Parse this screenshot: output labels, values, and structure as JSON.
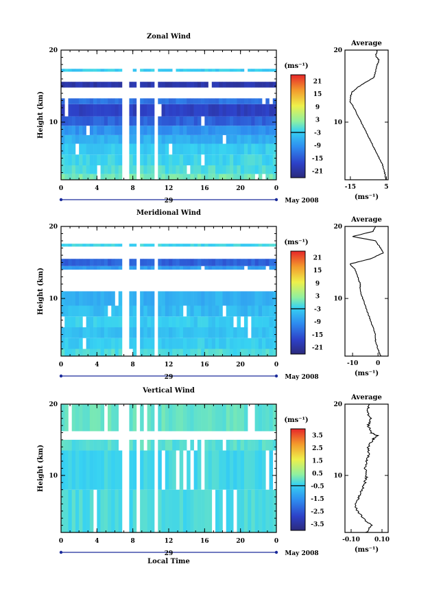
{
  "chart_data": [
    {
      "type": "heatmap",
      "title": "Zonal Wind",
      "ylabel": "Height (km)",
      "xlabel": "",
      "date_label": "29",
      "month_label": "May 2008",
      "x_ticks": [
        "0",
        "4",
        "8",
        "12",
        "16",
        "20",
        "0"
      ],
      "xlim": [
        0,
        24
      ],
      "y_ticks": [
        "10",
        "20"
      ],
      "ylim": [
        2,
        20
      ],
      "unit": "(ms⁻¹)",
      "colorbar_ticks": [
        "21",
        "15",
        "9",
        "3",
        "-3",
        "-9",
        "-15",
        "-21"
      ],
      "colorbar_range": [
        -24,
        24
      ],
      "gaps_hours": [
        [
          6.8,
          7.7
        ],
        [
          8.3,
          8.7
        ],
        [
          10.3,
          10.8
        ]
      ],
      "bands": [
        {
          "y0": 2.0,
          "y1": 2.8,
          "value": 1
        },
        {
          "y0": 2.8,
          "y1": 4.0,
          "value": -1
        },
        {
          "y0": 4.0,
          "y1": 5.5,
          "value": -2
        },
        {
          "y0": 5.5,
          "y1": 7.0,
          "value": -3
        },
        {
          "y0": 7.0,
          "y1": 8.2,
          "value": -6
        },
        {
          "y0": 8.2,
          "y1": 9.5,
          "value": -9
        },
        {
          "y0": 9.5,
          "y1": 10.8,
          "value": -14
        },
        {
          "y0": 10.8,
          "y1": 12.5,
          "value": -18
        },
        {
          "y0": 12.5,
          "y1": 13.3,
          "value": -12
        },
        {
          "y0": 13.3,
          "y1": 14.8,
          "value": null
        },
        {
          "y0": 14.8,
          "y1": 15.6,
          "value": -20
        },
        {
          "y0": 15.6,
          "y1": 17.0,
          "value": null
        },
        {
          "y0": 17.0,
          "y1": 17.4,
          "value": -3
        },
        {
          "y0": 17.4,
          "y1": 20.0,
          "value": null
        }
      ],
      "average_panel": {
        "title": "Average",
        "x_ticks": [
          "-15",
          "5"
        ],
        "xlim": [
          -18,
          6
        ],
        "xlabel": "(ms⁻¹)",
        "y_ticks": [
          "10",
          "20"
        ],
        "profile": [
          [
            2,
            5
          ],
          [
            3,
            4
          ],
          [
            4,
            3
          ],
          [
            5,
            1
          ],
          [
            6,
            -1
          ],
          [
            7,
            -3
          ],
          [
            8,
            -5
          ],
          [
            9,
            -7
          ],
          [
            10,
            -9
          ],
          [
            11,
            -11
          ],
          [
            12,
            -13
          ],
          [
            12.8,
            -15
          ],
          [
            13.5,
            -15
          ],
          [
            14.2,
            -14
          ],
          [
            15,
            -10
          ],
          [
            15.6,
            -6
          ],
          [
            16.2,
            -2
          ],
          [
            17,
            -1
          ],
          [
            18,
            0
          ],
          [
            18.6,
            1
          ],
          [
            19.2,
            -1
          ],
          [
            20,
            0
          ]
        ]
      }
    },
    {
      "type": "heatmap",
      "title": "Meridional Wind",
      "ylabel": "Height (km)",
      "xlabel": "",
      "date_label": "29",
      "month_label": "May 2008",
      "x_ticks": [
        "0",
        "4",
        "8",
        "12",
        "16",
        "20",
        "0"
      ],
      "xlim": [
        0,
        24
      ],
      "y_ticks": [
        "10",
        "20"
      ],
      "ylim": [
        2,
        20
      ],
      "unit": "(ms⁻¹)",
      "colorbar_ticks": [
        "21",
        "15",
        "9",
        "3",
        "-3",
        "-9",
        "-15",
        "-21"
      ],
      "colorbar_range": [
        -24,
        24
      ],
      "gaps_hours": [
        [
          6.8,
          7.7
        ],
        [
          8.3,
          8.7
        ],
        [
          10.3,
          10.8
        ]
      ],
      "bands": [
        {
          "y0": 2.0,
          "y1": 3.0,
          "value": -1
        },
        {
          "y0": 3.0,
          "y1": 4.5,
          "value": -3
        },
        {
          "y0": 4.5,
          "y1": 6.0,
          "value": -4
        },
        {
          "y0": 6.0,
          "y1": 7.5,
          "value": -3
        },
        {
          "y0": 7.5,
          "y1": 9.0,
          "value": -5
        },
        {
          "y0": 9.0,
          "y1": 11.0,
          "value": -6
        },
        {
          "y0": 11.0,
          "y1": 14.0,
          "value": null
        },
        {
          "y0": 14.0,
          "y1": 14.5,
          "value": -8
        },
        {
          "y0": 14.5,
          "y1": 15.5,
          "value": -14
        },
        {
          "y0": 15.5,
          "y1": 17.2,
          "value": null
        },
        {
          "y0": 17.2,
          "y1": 17.6,
          "value": -2
        },
        {
          "y0": 17.6,
          "y1": 20.0,
          "value": null
        }
      ],
      "average_panel": {
        "title": "Average",
        "x_ticks": [
          "-10",
          "0"
        ],
        "xlim": [
          -13,
          4
        ],
        "xlabel": "(ms⁻¹)",
        "y_ticks": [
          "10",
          "20"
        ],
        "profile": [
          [
            2,
            1
          ],
          [
            3,
            0
          ],
          [
            4,
            -1
          ],
          [
            5,
            -1
          ],
          [
            6,
            -2
          ],
          [
            7,
            -3
          ],
          [
            8,
            -4
          ],
          [
            9,
            -5
          ],
          [
            10,
            -6
          ],
          [
            11,
            -7
          ],
          [
            12,
            -7
          ],
          [
            13,
            -8
          ],
          [
            14,
            -9
          ],
          [
            14.8,
            -11
          ],
          [
            15.5,
            -3
          ],
          [
            16.3,
            2
          ],
          [
            17,
            1
          ],
          [
            18,
            -1
          ],
          [
            18.6,
            -10
          ],
          [
            19.3,
            -2
          ],
          [
            20,
            -1
          ]
        ]
      }
    },
    {
      "type": "heatmap",
      "title": "Vertical Wind",
      "ylabel": "Height (km)",
      "xlabel": "Local Time",
      "date_label": "29",
      "month_label": "May 2008",
      "x_ticks": [
        "0",
        "4",
        "8",
        "12",
        "16",
        "20",
        "0"
      ],
      "xlim": [
        0,
        24
      ],
      "y_ticks": [
        "10",
        "20"
      ],
      "ylim": [
        2,
        20
      ],
      "unit": "(ms⁻¹)",
      "colorbar_ticks": [
        "3.5",
        "2.5",
        "1.5",
        "0.5",
        "-0.5",
        "-1.5",
        "-2.5",
        "-3.5"
      ],
      "colorbar_range": [
        -4,
        4
      ],
      "gaps_hours": [
        [
          6.8,
          7.7
        ],
        [
          8.3,
          8.7
        ],
        [
          10.3,
          10.8
        ]
      ],
      "bands": [
        {
          "y0": 2.0,
          "y1": 8.0,
          "value": -0.2
        },
        {
          "y0": 8.0,
          "y1": 13.5,
          "value": -0.3
        },
        {
          "y0": 13.5,
          "y1": 15.0,
          "value": -0.1
        },
        {
          "y0": 15.0,
          "y1": 16.2,
          "value": null
        },
        {
          "y0": 16.2,
          "y1": 20.0,
          "value": 0.0
        }
      ],
      "average_panel": {
        "title": "Average",
        "x_ticks": [
          "-0.10",
          "0.10"
        ],
        "xlim": [
          -0.14,
          0.14
        ],
        "xlabel": "(ms⁻¹)",
        "y_ticks": [
          "10",
          "20"
        ],
        "profile": [
          [
            2,
            0.0
          ],
          [
            3,
            0.03
          ],
          [
            4,
            -0.02
          ],
          [
            5,
            -0.06
          ],
          [
            6,
            -0.07
          ],
          [
            7,
            -0.05
          ],
          [
            8,
            -0.03
          ],
          [
            9,
            -0.01
          ],
          [
            10,
            0.0
          ],
          [
            11,
            -0.01
          ],
          [
            12,
            0.0
          ],
          [
            13,
            0.02
          ],
          [
            14,
            0.01
          ],
          [
            15,
            0.04
          ],
          [
            15.6,
            0.07
          ],
          [
            16,
            0.03
          ],
          [
            17,
            0.01
          ],
          [
            18,
            0.03
          ],
          [
            19,
            0.0
          ],
          [
            20,
            0.02
          ]
        ]
      }
    }
  ]
}
